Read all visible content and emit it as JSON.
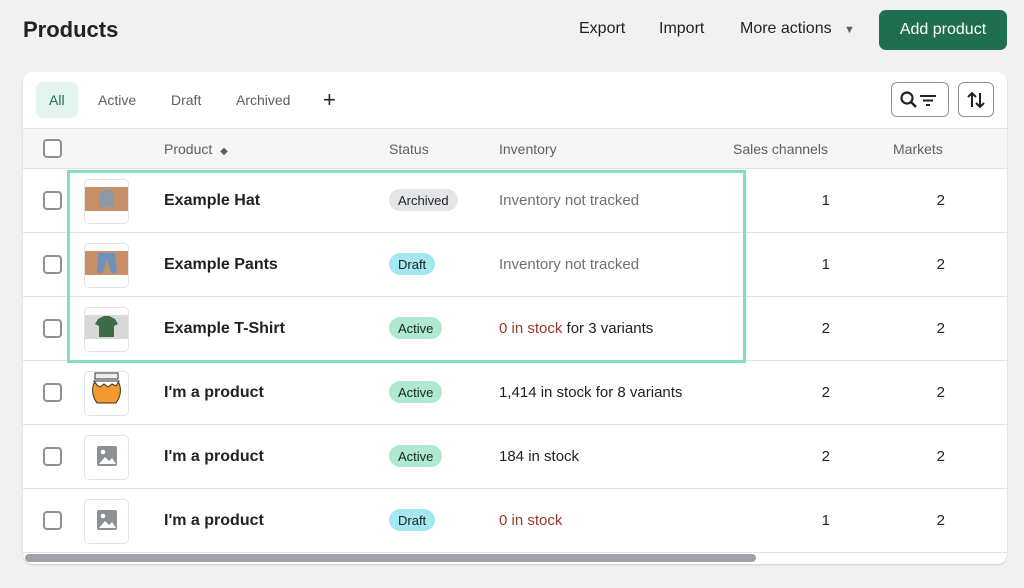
{
  "header": {
    "title": "Products",
    "export": "Export",
    "import": "Import",
    "more_actions": "More actions",
    "add_product": "Add product"
  },
  "tabs": [
    {
      "label": "All",
      "selected": true
    },
    {
      "label": "Active"
    },
    {
      "label": "Draft"
    },
    {
      "label": "Archived"
    }
  ],
  "columns": {
    "product": "Product",
    "status": "Status",
    "inventory": "Inventory",
    "sales_channels": "Sales channels",
    "markets": "Markets"
  },
  "colors": {
    "accent": "#1f6e50",
    "active_badge": "#aee9d1",
    "draft_badge": "#a4e8f2",
    "archived_badge": "#e4e5e7",
    "out_of_stock": "#a0372b",
    "highlight": "#86dfba"
  },
  "rows": [
    {
      "name": "Example Hat",
      "image": "hat",
      "status": "Archived",
      "inv_red": "",
      "inv": "Inventory not tracked",
      "muted": true,
      "sales": "1",
      "markets": "2"
    },
    {
      "name": "Example Pants",
      "image": "pants",
      "status": "Draft",
      "inv_red": "",
      "inv": "Inventory not tracked",
      "muted": true,
      "sales": "1",
      "markets": "2"
    },
    {
      "name": "Example T-Shirt",
      "image": "tshirt",
      "status": "Active",
      "inv_red": "0 in stock",
      "inv": " for 3 variants",
      "sales": "2",
      "markets": "2"
    },
    {
      "name": "I'm a product",
      "image": "jar",
      "status": "Active",
      "inv_red": "",
      "inv": "1,414 in stock for 8 variants",
      "sales": "2",
      "markets": "2"
    },
    {
      "name": "I'm a product",
      "image": "placeholder",
      "status": "Active",
      "inv_red": "",
      "inv": "184 in stock",
      "sales": "2",
      "markets": "2"
    },
    {
      "name": "I'm a product",
      "image": "placeholder",
      "status": "Draft",
      "inv_red": "0 in stock",
      "inv": "",
      "sales": "1",
      "markets": "2"
    }
  ]
}
